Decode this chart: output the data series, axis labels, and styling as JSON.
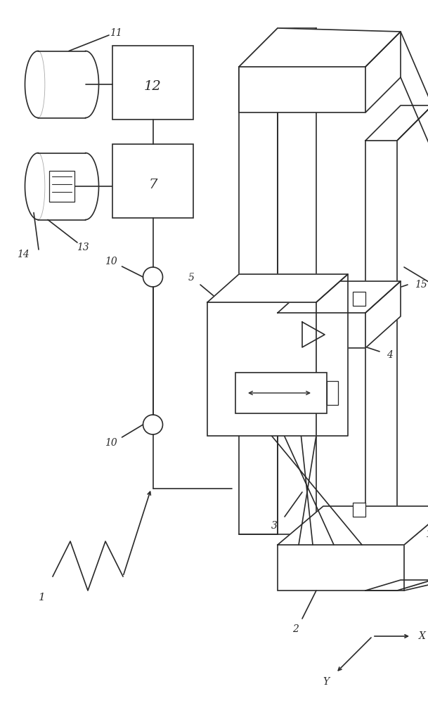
{
  "bg": "#ffffff",
  "lc": "#2a2a2a",
  "lw": 1.2
}
